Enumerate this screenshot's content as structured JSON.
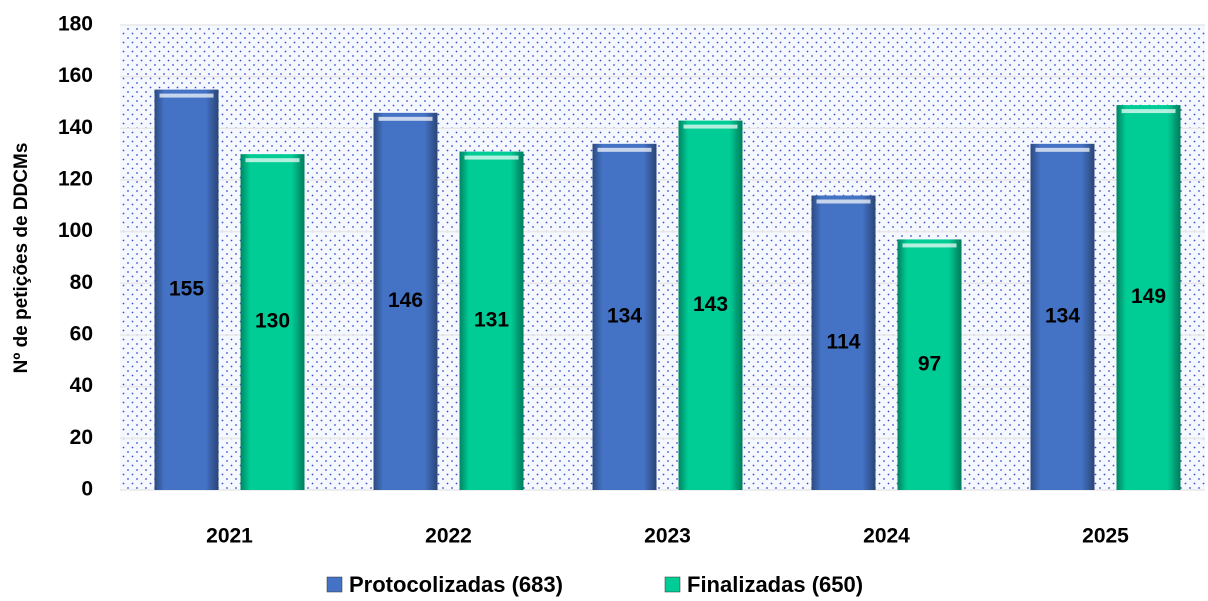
{
  "chart_data": {
    "type": "bar",
    "y_label": "Nº de petições de DDCMs",
    "categories": [
      "2021",
      "2022",
      "2023",
      "2024",
      "2025"
    ],
    "series": [
      {
        "name": "Protocolizadas (683)",
        "color": "#4472c4",
        "values": [
          155,
          146,
          134,
          114,
          134
        ]
      },
      {
        "name": "Finalizadas (650)",
        "color": "#00cc96",
        "values": [
          130,
          131,
          143,
          97,
          149
        ]
      }
    ],
    "ylim": [
      0,
      180
    ],
    "yticks": [
      0,
      20,
      40,
      60,
      80,
      100,
      120,
      140,
      160,
      180
    ],
    "grid": true,
    "legend": "bottom"
  }
}
